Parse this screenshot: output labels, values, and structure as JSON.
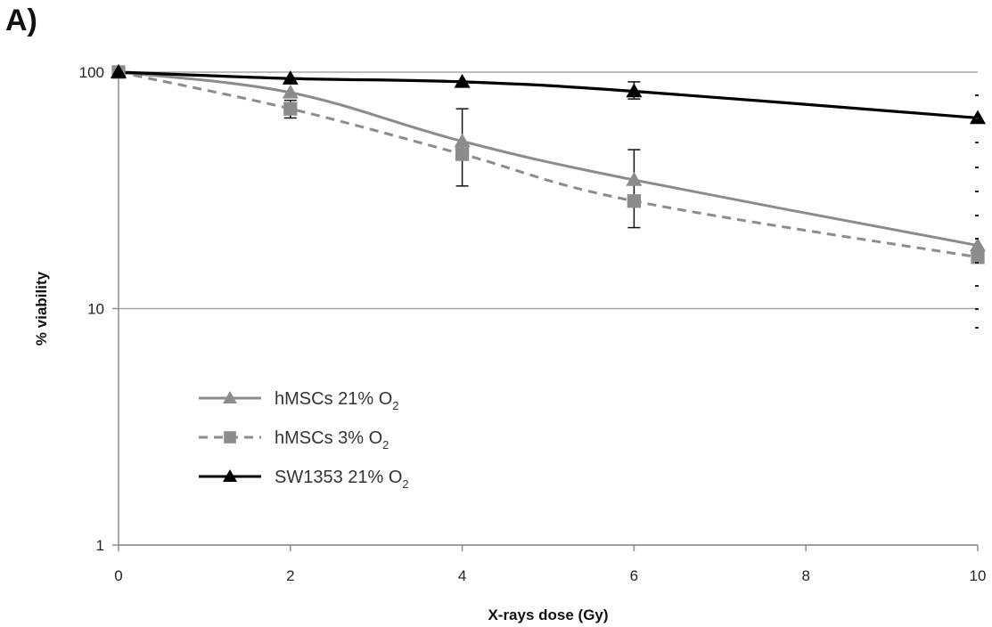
{
  "panel_label": "A)",
  "chart_data": {
    "type": "line",
    "xlabel": "X-rays dose (Gy)",
    "ylabel": "% viability",
    "x_ticks": [
      "0",
      "2",
      "4",
      "6",
      "8",
      "10"
    ],
    "y_ticks": [
      "1",
      "10",
      "100"
    ],
    "xlim": [
      0,
      10
    ],
    "ylim": [
      1,
      100
    ],
    "y_scale": "log",
    "grid": "horizontal major gridlines at 1, 10, 100",
    "legend_position": "lower-left",
    "x": [
      0,
      2,
      4,
      6,
      10
    ],
    "series": [
      {
        "name": "hMSCs 21% O",
        "name_subscript": "2",
        "color": "#8c8c8c",
        "dash": "solid",
        "marker": "triangle",
        "values": [
          100,
          82,
          51,
          35,
          18.5
        ],
        "error": [
          null,
          null,
          [
            33,
            70
          ],
          [
            22,
            47
          ],
          null
        ]
      },
      {
        "name": "hMSCs 3% O",
        "name_subscript": "2",
        "color": "#8c8c8c",
        "dash": "dashed",
        "marker": "square",
        "values": [
          100,
          70,
          45,
          28.5,
          16.5
        ],
        "error": [
          null,
          [
            64,
            76
          ],
          null,
          null,
          null
        ]
      },
      {
        "name": "SW1353 21% O",
        "name_subscript": "2",
        "color": "#000000",
        "dash": "solid",
        "marker": "triangle",
        "values": [
          100,
          94,
          91,
          83,
          64
        ],
        "error": [
          null,
          null,
          null,
          [
            77,
            91
          ],
          null
        ]
      }
    ]
  }
}
